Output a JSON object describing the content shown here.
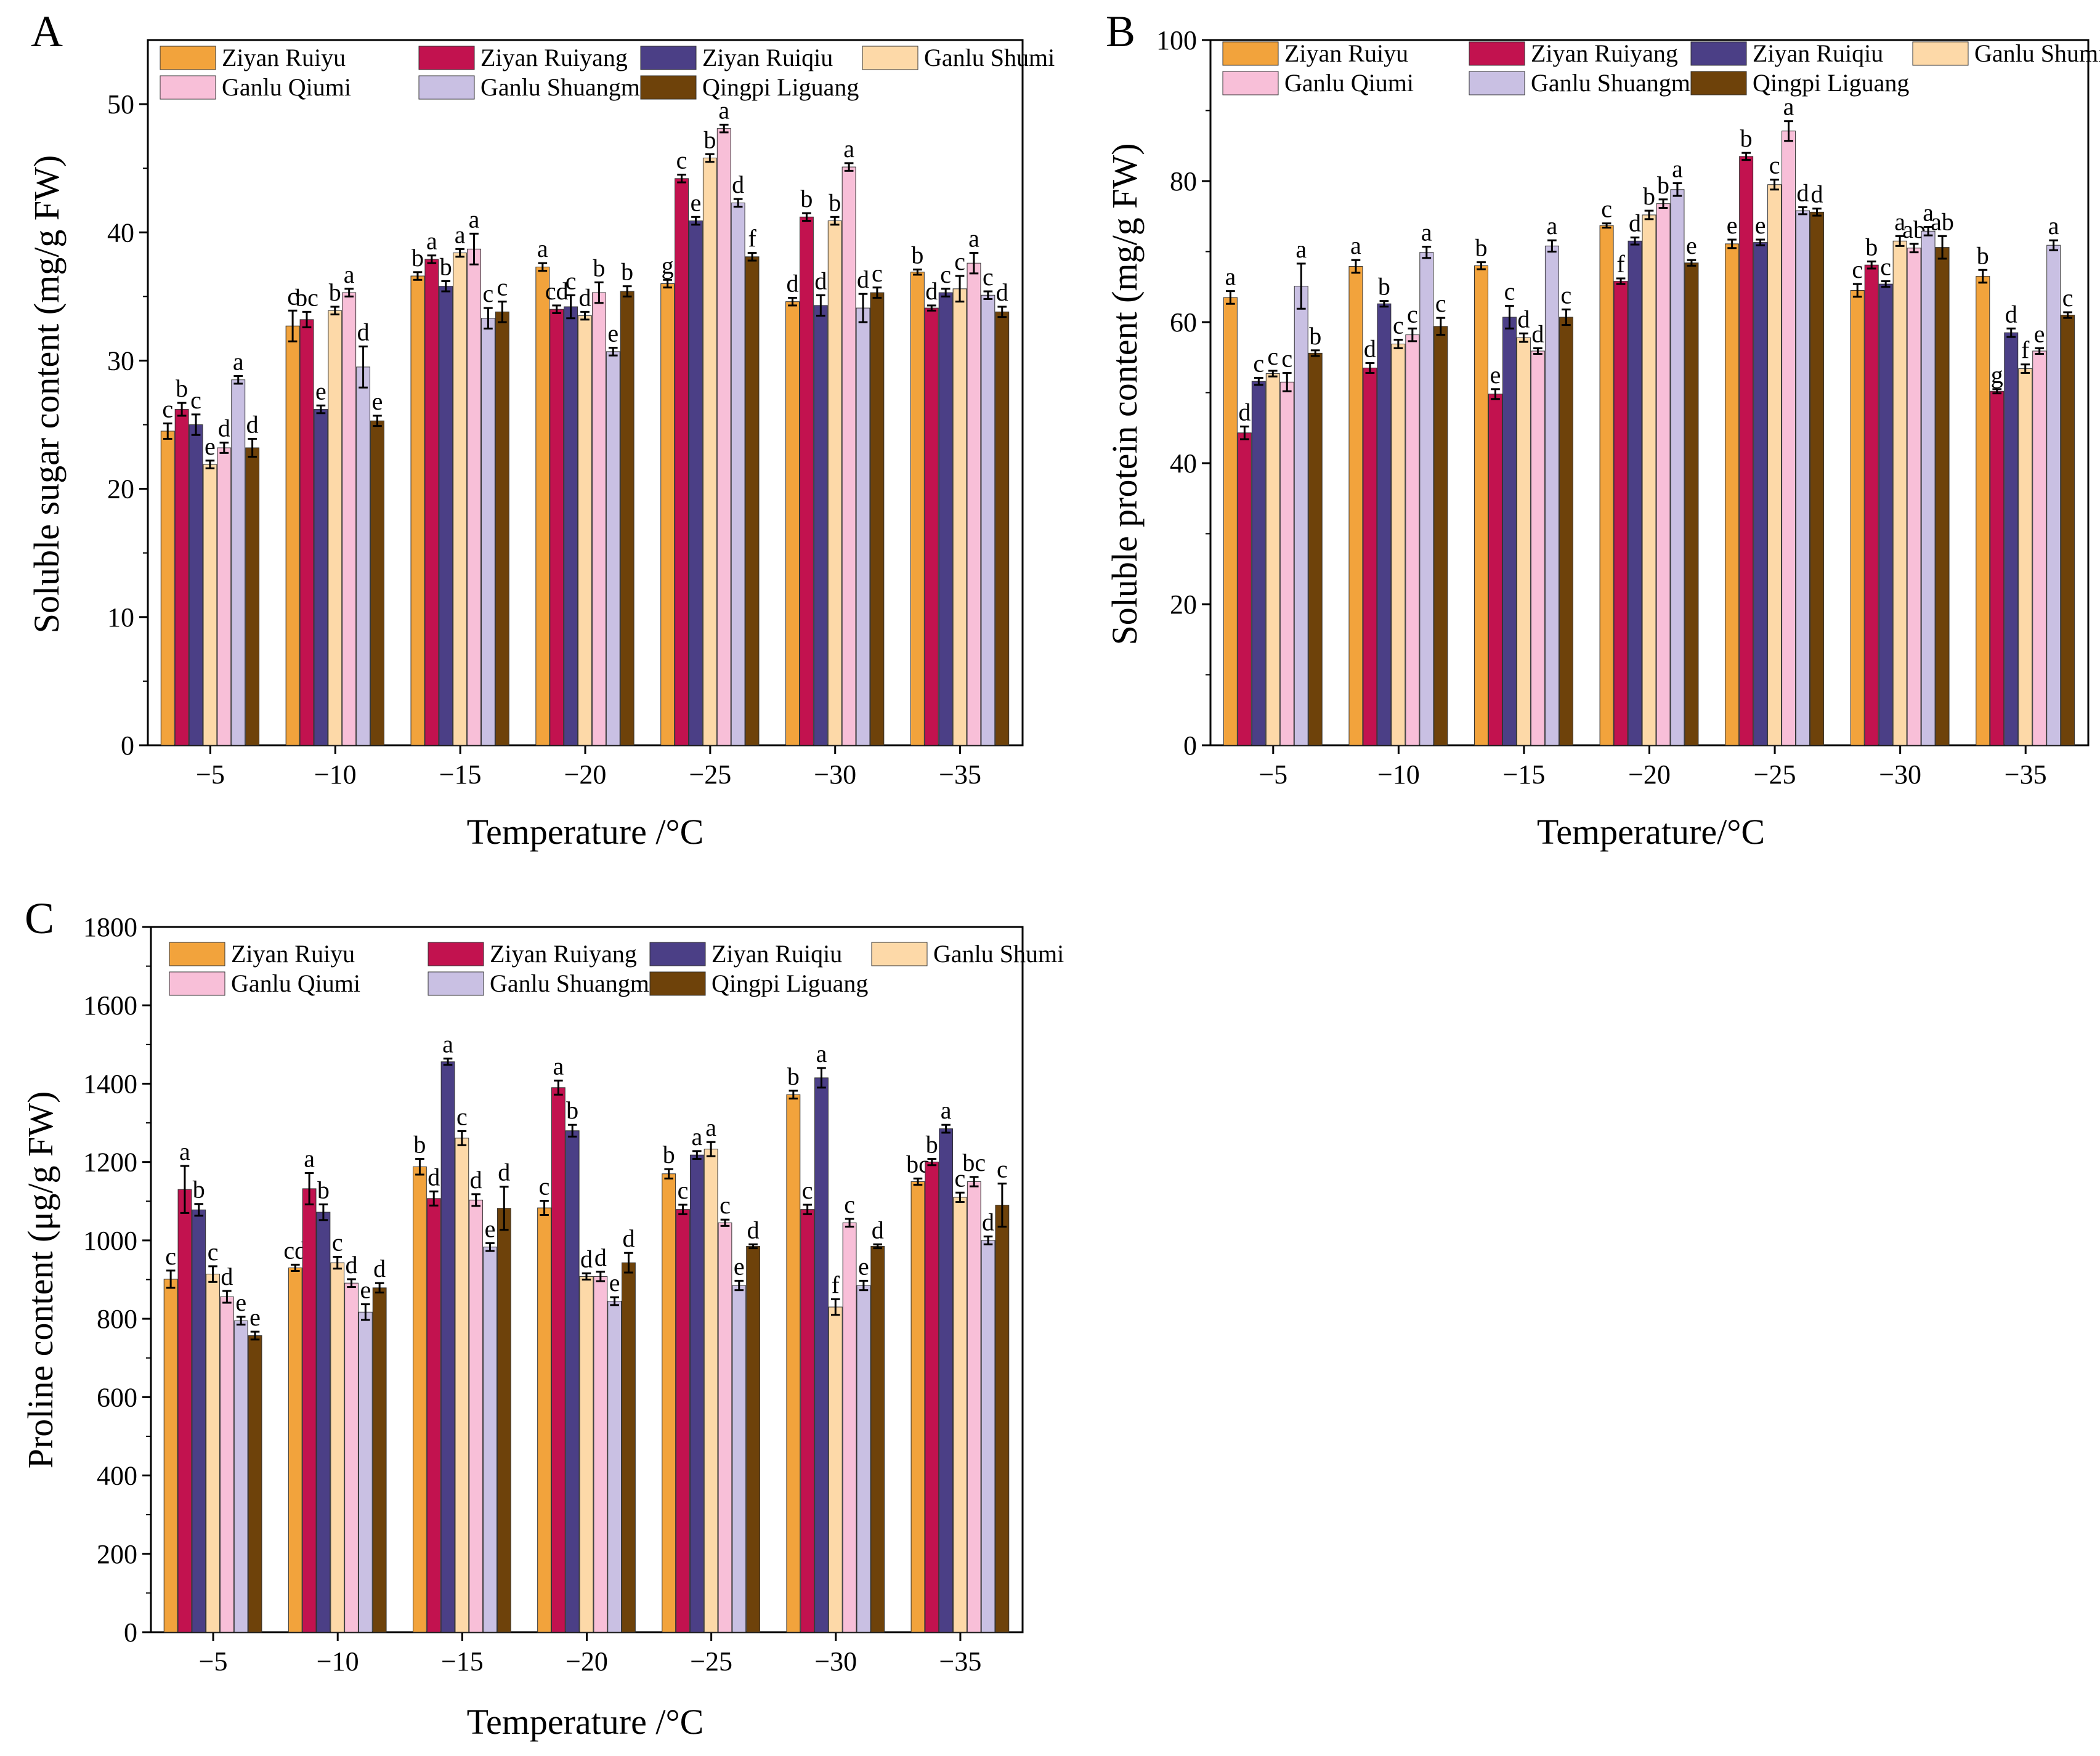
{
  "legend_entries": [
    "Ziyan Ruiyu",
    "Ziyan Ruiyang",
    "Ziyan Ruiqiu",
    "Ganlu Shumi",
    "Ganlu Qiumi",
    "Ganlu Shuangmi",
    "Qingpi Liguang"
  ],
  "series_colors": [
    "#F2A33C",
    "#C2124F",
    "#4B3F86",
    "#FDD9A8",
    "#F8BFD8",
    "#C9C0E3",
    "#6E420A"
  ],
  "chart_data": [
    {
      "panel": "A",
      "type": "bar",
      "xlabel": "Temperature /°C",
      "ylabel": "Soluble sugar content (mg/g FW)",
      "categories": [
        "−5",
        "−10",
        "−15",
        "−20",
        "−25",
        "−30",
        "−35"
      ],
      "ylim": [
        0,
        55
      ],
      "yticks": [
        0,
        10,
        20,
        30,
        40,
        50
      ],
      "series": [
        {
          "name": "Ziyan Ruiyu",
          "values": [
            24.5,
            32.7,
            36.6,
            37.3,
            36.0,
            34.6,
            36.9
          ],
          "errors": [
            0.6,
            1.2,
            0.3,
            0.3,
            0.3,
            0.3,
            0.2
          ],
          "letters": [
            "c",
            "c",
            "b",
            "a",
            "g",
            "d",
            "b"
          ]
        },
        {
          "name": "Ziyan Ruiyang",
          "values": [
            26.2,
            33.2,
            37.9,
            34.0,
            44.2,
            41.2,
            34.1
          ],
          "errors": [
            0.5,
            0.6,
            0.3,
            0.3,
            0.3,
            0.3,
            0.2
          ],
          "letters": [
            "b",
            "bc",
            "a",
            "cd",
            "c",
            "b",
            "d"
          ]
        },
        {
          "name": "Ziyan Ruiqiu",
          "values": [
            25.0,
            26.2,
            35.8,
            34.2,
            40.9,
            34.3,
            35.3
          ],
          "errors": [
            0.8,
            0.3,
            0.4,
            0.9,
            0.3,
            0.8,
            0.3
          ],
          "letters": [
            "c",
            "e",
            "b",
            "c",
            "e",
            "d",
            "c"
          ]
        },
        {
          "name": "Ganlu Shumi",
          "values": [
            21.9,
            33.9,
            38.4,
            33.5,
            45.8,
            40.9,
            35.6
          ],
          "errors": [
            0.3,
            0.3,
            0.3,
            0.3,
            0.3,
            0.3,
            1.0
          ],
          "letters": [
            "e",
            "b",
            "a",
            "d",
            "b",
            "b",
            "c"
          ]
        },
        {
          "name": "Ganlu Qiumi",
          "values": [
            23.2,
            35.3,
            38.7,
            35.3,
            48.1,
            45.1,
            37.6
          ],
          "errors": [
            0.4,
            0.3,
            1.2,
            0.8,
            0.3,
            0.3,
            0.8
          ],
          "letters": [
            "d",
            "a",
            "a",
            "b",
            "a",
            "a",
            "a"
          ]
        },
        {
          "name": "Ganlu Shuangmi",
          "values": [
            28.5,
            29.5,
            33.3,
            30.7,
            42.3,
            34.1,
            35.1
          ],
          "errors": [
            0.3,
            1.6,
            0.8,
            0.3,
            0.3,
            1.1,
            0.3
          ],
          "letters": [
            "a",
            "d",
            "c",
            "e",
            "d",
            "d",
            "c"
          ]
        },
        {
          "name": "Qingpi Liguang",
          "values": [
            23.2,
            25.3,
            33.8,
            35.4,
            38.1,
            35.3,
            33.8
          ],
          "errors": [
            0.7,
            0.4,
            0.8,
            0.4,
            0.3,
            0.4,
            0.4
          ],
          "letters": [
            "d",
            "e",
            "c",
            "b",
            "f",
            "c",
            "d"
          ]
        }
      ]
    },
    {
      "panel": "B",
      "type": "bar",
      "xlabel": "Temperature/°C",
      "ylabel": "Soluble protein content (mg/g FW)",
      "categories": [
        "−5",
        "−10",
        "−15",
        "−20",
        "−25",
        "−30",
        "−35"
      ],
      "ylim": [
        0,
        100
      ],
      "yticks": [
        0,
        20,
        40,
        60,
        80,
        100
      ],
      "series": [
        {
          "name": "Ziyan Ruiyu",
          "values": [
            63.5,
            67.9,
            68.0,
            73.7,
            71.1,
            64.5,
            66.5
          ],
          "errors": [
            0.9,
            0.9,
            0.5,
            0.3,
            0.6,
            0.9,
            0.9
          ],
          "letters": [
            "a",
            "a",
            "b",
            "c",
            "e",
            "c",
            "b"
          ]
        },
        {
          "name": "Ziyan Ruiyang",
          "values": [
            44.3,
            53.5,
            49.8,
            65.8,
            83.5,
            68.1,
            50.2
          ],
          "errors": [
            0.9,
            0.7,
            0.7,
            0.4,
            0.5,
            0.5,
            0.3
          ],
          "letters": [
            "d",
            "d",
            "e",
            "f",
            "b",
            "b",
            "g"
          ]
        },
        {
          "name": "Ziyan Ruiqiu",
          "values": [
            51.6,
            62.6,
            60.7,
            71.5,
            71.3,
            65.4,
            58.5
          ],
          "errors": [
            0.5,
            0.4,
            1.6,
            0.5,
            0.4,
            0.4,
            0.6
          ],
          "letters": [
            "c",
            "b",
            "c",
            "d",
            "e",
            "c",
            "d"
          ]
        },
        {
          "name": "Ganlu Shumi",
          "values": [
            52.7,
            56.9,
            57.8,
            75.2,
            79.5,
            71.5,
            53.4
          ],
          "errors": [
            0.4,
            0.6,
            0.6,
            0.6,
            0.7,
            0.7,
            0.6
          ],
          "letters": [
            "c",
            "c",
            "d",
            "b",
            "c",
            "a",
            "f"
          ]
        },
        {
          "name": "Ganlu Qiumi",
          "values": [
            51.5,
            58.2,
            55.9,
            76.8,
            87.1,
            70.5,
            55.9
          ],
          "errors": [
            1.3,
            0.9,
            0.4,
            0.6,
            1.4,
            0.6,
            0.4
          ],
          "letters": [
            "c",
            "c",
            "d",
            "b",
            "a",
            "ab",
            "e"
          ]
        },
        {
          "name": "Ganlu Shuangmi",
          "values": [
            65.1,
            69.9,
            70.8,
            78.8,
            75.8,
            72.9,
            70.9
          ],
          "errors": [
            3.2,
            0.8,
            0.8,
            0.9,
            0.5,
            0.6,
            0.7
          ],
          "letters": [
            "a",
            "a",
            "a",
            "a",
            "d",
            "a",
            "a"
          ]
        },
        {
          "name": "Qingpi Liguang",
          "values": [
            55.6,
            59.4,
            60.7,
            68.4,
            75.6,
            70.6,
            61.0
          ],
          "errors": [
            0.4,
            1.2,
            1.1,
            0.4,
            0.5,
            1.6,
            0.4
          ],
          "letters": [
            "b",
            "c",
            "c",
            "e",
            "d",
            "ab",
            "c"
          ]
        }
      ]
    },
    {
      "panel": "C",
      "type": "bar",
      "xlabel": "Temperature /°C",
      "ylabel": "Proline content (μg/g FW)",
      "categories": [
        "−5",
        "−10",
        "−15",
        "−20",
        "−25",
        "−30",
        "−35"
      ],
      "ylim": [
        0,
        1800
      ],
      "yticks": [
        0,
        200,
        400,
        600,
        800,
        1000,
        1200,
        1400,
        1600,
        1800
      ],
      "series": [
        {
          "name": "Ziyan Ruiyu",
          "values": [
            901,
            930,
            1188,
            1083,
            1170,
            1372,
            1150
          ],
          "errors": [
            22,
            8,
            20,
            18,
            12,
            10,
            8
          ],
          "letters": [
            "c",
            "cd",
            "b",
            "c",
            "b",
            "b",
            "bc"
          ]
        },
        {
          "name": "Ziyan Ruiyang",
          "values": [
            1130,
            1132,
            1107,
            1390,
            1079,
            1079,
            1200
          ],
          "errors": [
            60,
            40,
            18,
            18,
            12,
            12,
            8
          ],
          "letters": [
            "a",
            "a",
            "d",
            "a",
            "c",
            "c",
            "b"
          ]
        },
        {
          "name": "Ziyan Ruiqiu",
          "values": [
            1078,
            1072,
            1456,
            1280,
            1218,
            1415,
            1285
          ],
          "errors": [
            15,
            20,
            8,
            15,
            10,
            25,
            10
          ],
          "letters": [
            "b",
            "b",
            "a",
            "b",
            "a",
            "a",
            "a"
          ]
        },
        {
          "name": "Ganlu Shumi",
          "values": [
            914,
            943,
            1261,
            908,
            1233,
            830,
            1110
          ],
          "errors": [
            20,
            15,
            18,
            8,
            18,
            20,
            12
          ],
          "letters": [
            "c",
            "c",
            "c",
            "d",
            "a",
            "f",
            "c"
          ]
        },
        {
          "name": "Ganlu Qiumi",
          "values": [
            856,
            891,
            1103,
            908,
            1045,
            1045,
            1150
          ],
          "errors": [
            15,
            10,
            15,
            12,
            8,
            10,
            12
          ],
          "letters": [
            "d",
            "d",
            "d",
            "d",
            "c",
            "c",
            "bc"
          ]
        },
        {
          "name": "Ganlu Shuangmi",
          "values": [
            795,
            817,
            983,
            845,
            885,
            885,
            1000
          ],
          "errors": [
            10,
            20,
            10,
            10,
            12,
            12,
            10
          ],
          "letters": [
            "e",
            "e",
            "e",
            "e",
            "e",
            "e",
            "d"
          ]
        },
        {
          "name": "Qingpi Liguang",
          "values": [
            757,
            879,
            1082,
            943,
            985,
            985,
            1090
          ],
          "errors": [
            10,
            12,
            55,
            25,
            5,
            5,
            55
          ],
          "letters": [
            "e",
            "d",
            "d",
            "d",
            "d",
            "d",
            "c"
          ]
        }
      ]
    }
  ]
}
